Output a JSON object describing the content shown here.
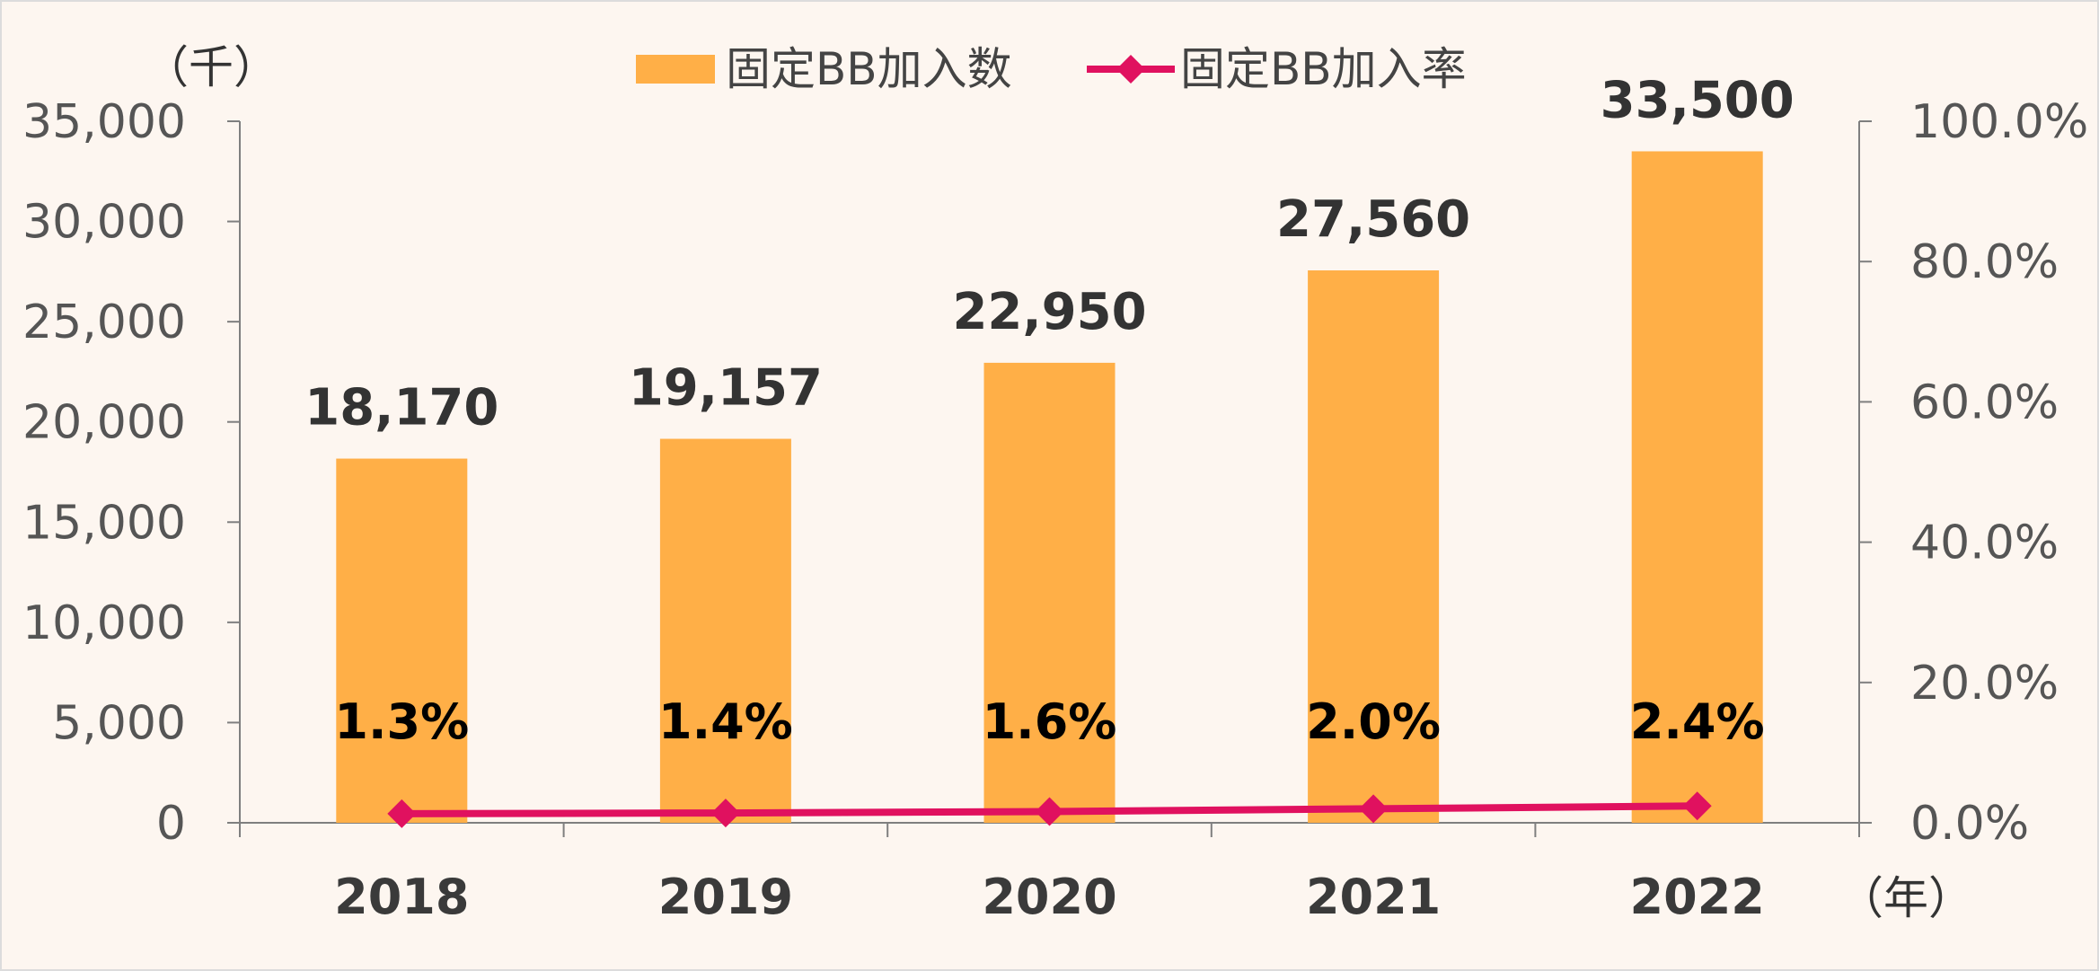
{
  "chart_data": {
    "type": "bar",
    "categories": [
      "2018",
      "2019",
      "2020",
      "2021",
      "2022"
    ],
    "series": [
      {
        "name": "固定BB加入数",
        "type": "bar",
        "axis": "left",
        "values": [
          18170,
          19157,
          22950,
          27560,
          33500
        ],
        "labels": [
          "18,170",
          "19,157",
          "22,950",
          "27,560",
          "33,500"
        ]
      },
      {
        "name": "固定BB加入率",
        "type": "line",
        "axis": "right",
        "values": [
          1.3,
          1.4,
          1.6,
          2.0,
          2.4
        ],
        "labels": [
          "1.3%",
          "1.4%",
          "1.6%",
          "2.0%",
          "2.4%"
        ]
      }
    ],
    "y_left": {
      "unit_label": "（千）",
      "ylim": [
        0,
        35000
      ],
      "ticks": [
        "0",
        "5,000",
        "10,000",
        "15,000",
        "20,000",
        "25,000",
        "30,000",
        "35,000"
      ]
    },
    "y_right": {
      "ylim": [
        0,
        100
      ],
      "ticks": [
        "0.0%",
        "20.0%",
        "40.0%",
        "60.0%",
        "80.0%",
        "100.0%"
      ]
    },
    "x_unit_label": "（年）",
    "legend_position": "top-center",
    "grid": false,
    "colors": {
      "bar": "#ffaf47",
      "line": "#e0115f",
      "axis": "#7f7f7f"
    }
  }
}
